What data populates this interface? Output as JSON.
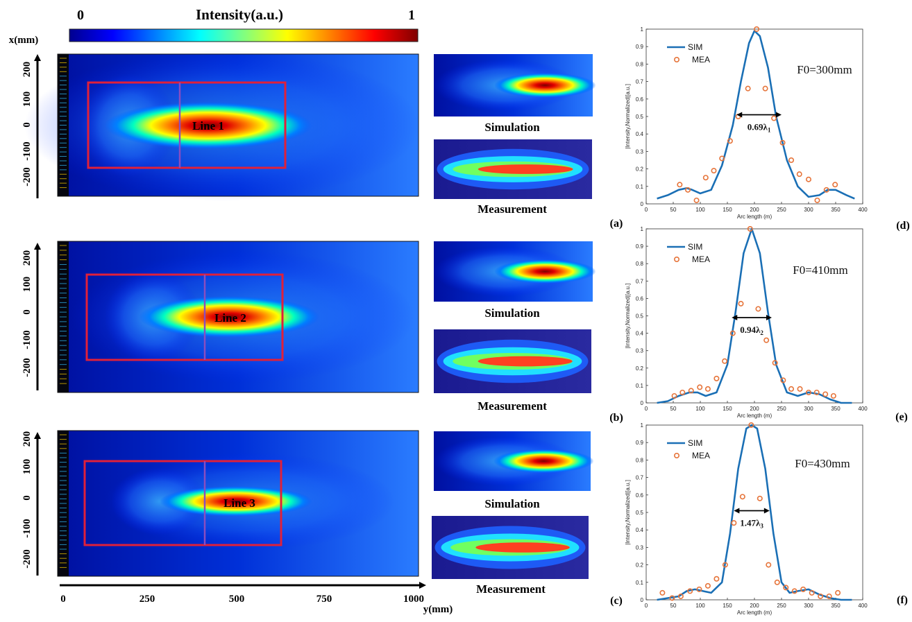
{
  "colorbar": {
    "title": "Intensity(a.u.)",
    "min_label": "0",
    "max_label": "1",
    "stops": [
      "#00008f",
      "#0000ff",
      "#0080ff",
      "#00ffff",
      "#80ff80",
      "#ffff00",
      "#ff8000",
      "#ff0000",
      "#800000"
    ]
  },
  "left_axes": {
    "x_label": "x(mm)",
    "y_label": "y(mm)",
    "x_ticks": [
      "200",
      "100",
      "0",
      "-100",
      "-200"
    ],
    "y_ticks": [
      "0",
      "250",
      "500",
      "750",
      "1000"
    ]
  },
  "rows": [
    {
      "line_label": "Line 1",
      "sim_caption": "Simulation",
      "mea_caption": "Measurement",
      "left_tag": "(a)",
      "right_tag": "(d)"
    },
    {
      "line_label": "Line 2",
      "sim_caption": "Simulation",
      "mea_caption": "Measurement",
      "left_tag": "(b)",
      "right_tag": "(e)"
    },
    {
      "line_label": "Line 3",
      "sim_caption": "Simulation",
      "mea_caption": "Measurement",
      "left_tag": "(c)",
      "right_tag": "(f)"
    }
  ],
  "chart_data": [
    {
      "type": "line",
      "xlabel": "Arc length (m)",
      "ylabel": "|Intensity,Normalized|[a.u.]",
      "xlim": [
        0,
        400
      ],
      "ylim": [
        0,
        1
      ],
      "xticks": [
        "0",
        "50",
        "100",
        "150",
        "200",
        "250",
        "300",
        "350",
        "400"
      ],
      "yticks": [
        "0",
        "0.1",
        "0.2",
        "0.3",
        "0.4",
        "0.5",
        "0.6",
        "0.7",
        "0.8",
        "0.9",
        "1"
      ],
      "legend": [
        "SIM",
        "MEA"
      ],
      "annotation": "F0=300mm",
      "fwhm_value": "0.69λ",
      "fwhm_sub": "1",
      "fwhm_range": [
        167,
        250
      ],
      "fwhm_level": 0.51,
      "series": [
        {
          "name": "SIM",
          "x": [
            20,
            40,
            60,
            75,
            85,
            100,
            120,
            140,
            160,
            175,
            190,
            200,
            210,
            225,
            240,
            260,
            280,
            300,
            320,
            335,
            350,
            370,
            385
          ],
          "y": [
            0.03,
            0.05,
            0.08,
            0.09,
            0.08,
            0.06,
            0.08,
            0.22,
            0.45,
            0.7,
            0.92,
            0.99,
            0.96,
            0.78,
            0.5,
            0.25,
            0.1,
            0.04,
            0.05,
            0.08,
            0.08,
            0.05,
            0.03
          ]
        },
        {
          "name": "MEA",
          "x": [
            62,
            77,
            93,
            110,
            125,
            140,
            155,
            170,
            188,
            204,
            220,
            236,
            252,
            268,
            283,
            300,
            316,
            333,
            349
          ],
          "y": [
            0.11,
            0.08,
            0.02,
            0.15,
            0.19,
            0.26,
            0.36,
            0.5,
            0.66,
            1.0,
            0.66,
            0.49,
            0.35,
            0.25,
            0.17,
            0.14,
            0.02,
            0.08,
            0.11
          ]
        }
      ]
    },
    {
      "type": "line",
      "xlabel": "Arc length (m)",
      "ylabel": "|Intensity,Normalized|[a.u.]",
      "xlim": [
        0,
        400
      ],
      "ylim": [
        0,
        1
      ],
      "xticks": [
        "0",
        "50",
        "100",
        "150",
        "200",
        "250",
        "300",
        "350",
        "400"
      ],
      "yticks": [
        "0",
        "0.1",
        "0.2",
        "0.3",
        "0.4",
        "0.5",
        "0.6",
        "0.7",
        "0.8",
        "0.9",
        "1"
      ],
      "legend": [
        "SIM",
        "MEA"
      ],
      "annotation": "F0=410mm",
      "fwhm_value": "0.94λ",
      "fwhm_sub": "2",
      "fwhm_range": [
        158,
        232
      ],
      "fwhm_level": 0.49,
      "series": [
        {
          "name": "SIM",
          "x": [
            20,
            40,
            60,
            80,
            95,
            110,
            130,
            150,
            165,
            180,
            195,
            210,
            225,
            240,
            260,
            280,
            300,
            320,
            340,
            360,
            380
          ],
          "y": [
            0.0,
            0.01,
            0.04,
            0.06,
            0.06,
            0.04,
            0.06,
            0.22,
            0.52,
            0.86,
            1.0,
            0.86,
            0.52,
            0.22,
            0.06,
            0.04,
            0.06,
            0.05,
            0.02,
            0.0,
            0.0
          ]
        },
        {
          "name": "MEA",
          "x": [
            52,
            67,
            83,
            99,
            114,
            130,
            145,
            160,
            175,
            192,
            207,
            222,
            238,
            253,
            268,
            284,
            300,
            315,
            331,
            346
          ],
          "y": [
            0.04,
            0.06,
            0.07,
            0.09,
            0.08,
            0.14,
            0.24,
            0.4,
            0.57,
            1.0,
            0.54,
            0.36,
            0.23,
            0.13,
            0.08,
            0.08,
            0.06,
            0.06,
            0.05,
            0.04
          ]
        }
      ]
    },
    {
      "type": "line",
      "xlabel": "Arc length (m)",
      "ylabel": "|Intensity,Normalized|[a.u.]",
      "xlim": [
        0,
        400
      ],
      "ylim": [
        0,
        1
      ],
      "xticks": [
        "0",
        "50",
        "100",
        "150",
        "200",
        "250",
        "300",
        "350",
        "400"
      ],
      "yticks": [
        "0",
        "0.1",
        "0.2",
        "0.3",
        "0.4",
        "0.5",
        "0.6",
        "0.7",
        "0.8",
        "0.9",
        "1"
      ],
      "legend": [
        "SIM",
        "MEA"
      ],
      "annotation": "F0=430mm",
      "fwhm_value": "1.47λ",
      "fwhm_sub": "3",
      "fwhm_range": [
        162,
        228
      ],
      "fwhm_level": 0.51,
      "series": [
        {
          "name": "SIM",
          "x": [
            20,
            40,
            60,
            75,
            90,
            105,
            120,
            140,
            155,
            170,
            185,
            195,
            205,
            220,
            235,
            250,
            265,
            280,
            300,
            320,
            340,
            360,
            380
          ],
          "y": [
            0.0,
            0.01,
            0.02,
            0.05,
            0.06,
            0.05,
            0.04,
            0.1,
            0.38,
            0.75,
            0.98,
            1.0,
            0.98,
            0.75,
            0.38,
            0.1,
            0.04,
            0.05,
            0.06,
            0.03,
            0.01,
            0.0,
            0.0
          ]
        },
        {
          "name": "MEA",
          "x": [
            30,
            48,
            64,
            81,
            98,
            114,
            130,
            146,
            162,
            178,
            194,
            210,
            226,
            242,
            258,
            274,
            290,
            306,
            322,
            338,
            354
          ],
          "y": [
            0.04,
            0.01,
            0.02,
            0.05,
            0.06,
            0.08,
            0.12,
            0.2,
            0.44,
            0.59,
            1.0,
            0.58,
            0.2,
            0.1,
            0.07,
            0.05,
            0.06,
            0.04,
            0.02,
            0.02,
            0.04
          ]
        }
      ]
    }
  ]
}
